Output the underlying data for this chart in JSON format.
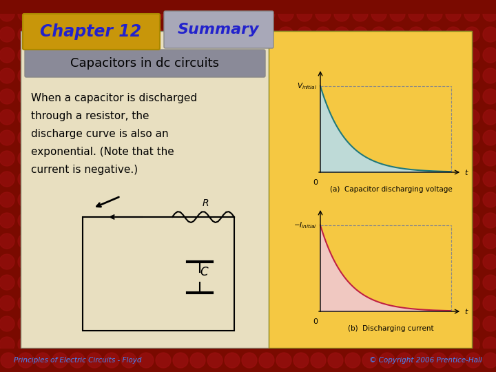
{
  "title_chapter": "Chapter 12",
  "title_summary": "Summary",
  "subtitle": "Capacitors in dc circuits",
  "body_text": "When a capacitor is discharged\nthrough a resistor, the\ndischarge curve is also an\nexponential. (Note that the\ncurrent is negative.)",
  "graph_a_label": "(a)  Capacitor discharging voltage",
  "graph_b_label": "(b)  Discharging current",
  "t_label": "t",
  "bg_slide": "#7a0a00",
  "bg_content": "#e8dfc0",
  "bg_graph_panel": "#f5c842",
  "chapter_box_color": "#c8960a",
  "summary_box_color": "#a8a8b8",
  "subtitle_box_color": "#8a8a98",
  "graph_fill_a": "#b8dde8",
  "graph_fill_b": "#f0c8d0",
  "graph_line_a": "#207878",
  "graph_line_b": "#c02040",
  "footer_text": "Principles of Electric Circuits - Floyd",
  "copyright_text": "© Copyright 2006 Prentice-Hall",
  "footer_text_color": "#4488ff",
  "copyright_text_color": "#4488ff",
  "red_texture": "#8B1010",
  "dark_border": "#3a0000"
}
